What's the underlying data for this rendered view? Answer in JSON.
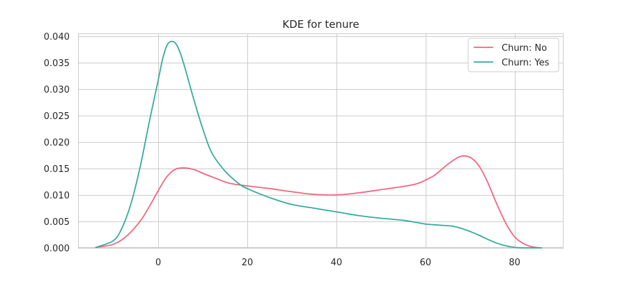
{
  "chart_data": {
    "type": "line",
    "title": "KDE for tenure",
    "xlabel": "",
    "ylabel": "",
    "xlim": [
      -18,
      91
    ],
    "ylim": [
      0,
      0.0405
    ],
    "x_ticks": [
      0,
      20,
      40,
      60,
      80
    ],
    "x_tick_labels": [
      "0",
      "20",
      "40",
      "60",
      "80"
    ],
    "y_ticks": [
      0,
      0.005,
      0.01,
      0.015,
      0.02,
      0.025,
      0.03,
      0.035,
      0.04
    ],
    "y_tick_labels": [
      "0.000",
      "0.005",
      "0.010",
      "0.015",
      "0.020",
      "0.025",
      "0.030",
      "0.035",
      "0.040"
    ],
    "grid": true,
    "legend_position": "top-right",
    "series": [
      {
        "name": "Churn: No",
        "color": "#f0677d",
        "x": [
          -14,
          -10,
          -7,
          -4,
          -2,
          0,
          2,
          4,
          6,
          8,
          10,
          13,
          16,
          20,
          25,
          30,
          35,
          40,
          45,
          50,
          55,
          58,
          60,
          62,
          64,
          66,
          68,
          70,
          72,
          74,
          76,
          78,
          80,
          82,
          84,
          86
        ],
        "y": [
          0.0001,
          0.0007,
          0.0023,
          0.0051,
          0.0078,
          0.0108,
          0.0135,
          0.0149,
          0.0151,
          0.0148,
          0.0141,
          0.0131,
          0.0122,
          0.0117,
          0.0112,
          0.0106,
          0.0101,
          0.01,
          0.0104,
          0.011,
          0.0116,
          0.0121,
          0.0128,
          0.0137,
          0.0151,
          0.0164,
          0.0173,
          0.0171,
          0.0155,
          0.0123,
          0.0083,
          0.0047,
          0.0021,
          0.0008,
          0.0002,
          0.0
        ]
      },
      {
        "name": "Churn: Yes",
        "color": "#36ab9f",
        "x": [
          -14,
          -10,
          -8,
          -6,
          -4,
          -2,
          0,
          1,
          2,
          3,
          4,
          5,
          6,
          8,
          10,
          12,
          15,
          18,
          20,
          25,
          30,
          35,
          40,
          45,
          50,
          55,
          58,
          60,
          63,
          66,
          68,
          70,
          72,
          74,
          76,
          78,
          80,
          82,
          84,
          86
        ],
        "y": [
          0.0001,
          0.0014,
          0.004,
          0.0087,
          0.0155,
          0.0238,
          0.0317,
          0.0357,
          0.0383,
          0.039,
          0.0385,
          0.0367,
          0.034,
          0.028,
          0.0225,
          0.018,
          0.0145,
          0.0122,
          0.0112,
          0.0095,
          0.0082,
          0.0075,
          0.0068,
          0.0061,
          0.0056,
          0.0052,
          0.0048,
          0.0045,
          0.0043,
          0.0041,
          0.0037,
          0.0031,
          0.0024,
          0.0016,
          0.0009,
          0.0004,
          0.0001,
          0.0,
          0.0,
          0.0
        ]
      }
    ]
  }
}
